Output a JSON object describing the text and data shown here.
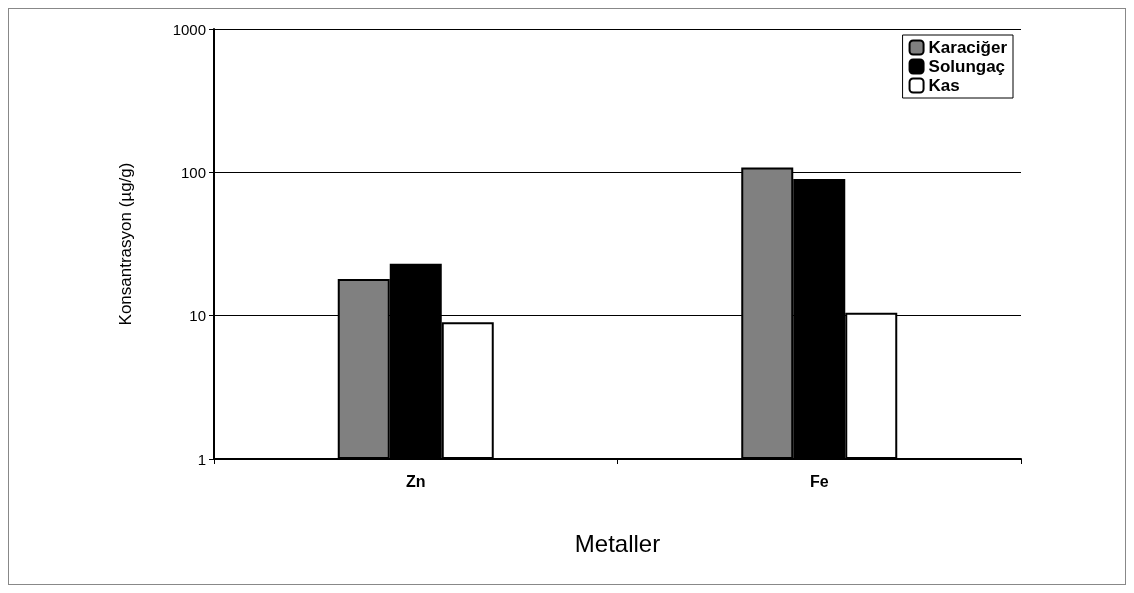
{
  "chart_data": {
    "type": "bar",
    "xlabel": "Metaller",
    "ylabel": "Konsantrasyon (µg/g)",
    "categories": [
      "Zn",
      "Fe"
    ],
    "series": [
      {
        "name": "Karaciğer",
        "color": "#808080",
        "values": [
          18,
          108
        ]
      },
      {
        "name": "Solungaç",
        "color": "#000000",
        "values": [
          23,
          90
        ]
      },
      {
        "name": "Kas",
        "color": "#ffffff",
        "values": [
          9,
          10.5
        ]
      }
    ],
    "log": true,
    "ylim": [
      1,
      1000
    ],
    "yticks": [
      1,
      10,
      100,
      1000
    ],
    "grid": "y",
    "legend": "top right"
  }
}
